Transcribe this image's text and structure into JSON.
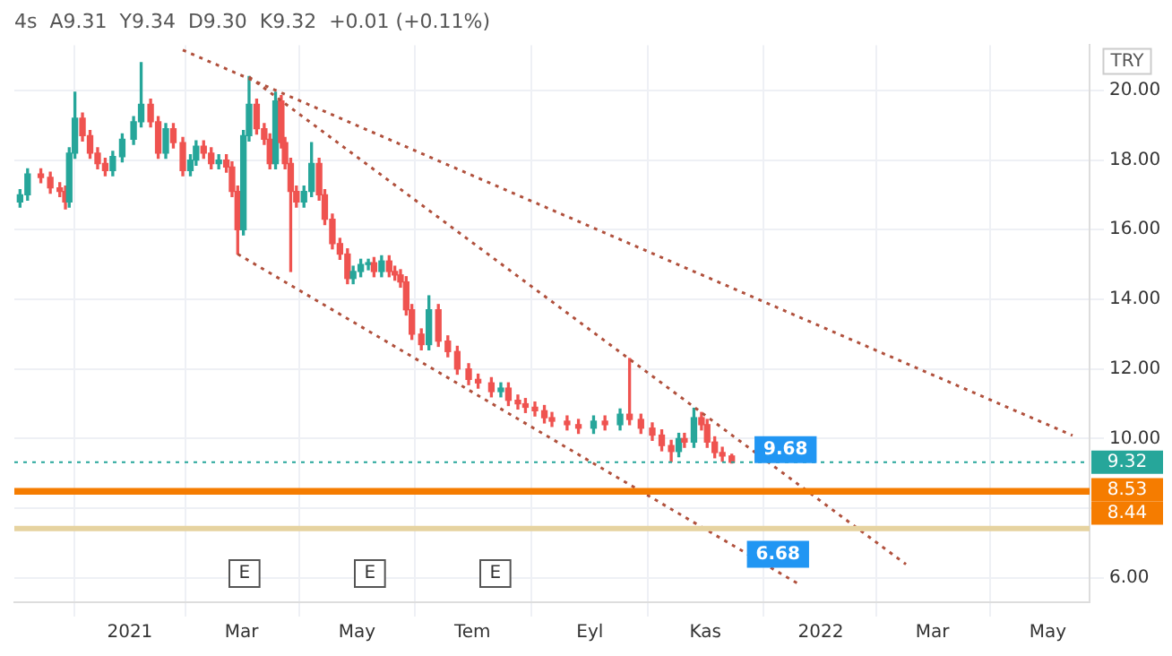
{
  "chart_data": {
    "type": "candlestick",
    "title": "4s  A9.31  Y9.34  D9.30  K9.32  +0.01 (+0.11%)",
    "ylabel": "TRY",
    "x": [
      "2020-11-04",
      "2020-11-08",
      "2020-11-15",
      "2020-11-20",
      "2020-11-25",
      "2020-11-28",
      "2020-11-30",
      "2020-12-03",
      "2020-12-07",
      "2020-12-11",
      "2020-12-15",
      "2020-12-19",
      "2020-12-23",
      "2020-12-28",
      "2021-01-03",
      "2021-01-07",
      "2021-01-12",
      "2021-01-16",
      "2021-01-20",
      "2021-01-24",
      "2021-01-29",
      "2021-02-02",
      "2021-02-05",
      "2021-02-09",
      "2021-02-13",
      "2021-02-17",
      "2021-02-21",
      "2021-02-24",
      "2021-02-27",
      "2021-03-02",
      "2021-03-05",
      "2021-03-09",
      "2021-03-13",
      "2021-03-16",
      "2021-03-19",
      "2021-03-22",
      "2021-03-24",
      "2021-03-27",
      "2021-03-30",
      "2021-04-03",
      "2021-04-07",
      "2021-04-11",
      "2021-04-14",
      "2021-04-18",
      "2021-04-22",
      "2021-04-26",
      "2021-04-29",
      "2021-05-03",
      "2021-05-07",
      "2021-05-10",
      "2021-05-14",
      "2021-05-18",
      "2021-05-21",
      "2021-05-24",
      "2021-05-27",
      "2021-05-30",
      "2021-06-04",
      "2021-06-08",
      "2021-06-13",
      "2021-06-18",
      "2021-06-23",
      "2021-06-29",
      "2021-07-04",
      "2021-07-11",
      "2021-07-16",
      "2021-07-20",
      "2021-07-25",
      "2021-07-29",
      "2021-08-03",
      "2021-08-08",
      "2021-08-12",
      "2021-08-20",
      "2021-08-26",
      "2021-09-03",
      "2021-09-09",
      "2021-09-17",
      "2021-09-22",
      "2021-09-28",
      "2021-10-04",
      "2021-10-09",
      "2021-10-14",
      "2021-10-18",
      "2021-10-21",
      "2021-10-26",
      "2021-10-30",
      "2021-11-02",
      "2021-11-06",
      "2021-11-10",
      "2021-11-15"
    ],
    "ohlc": [
      [
        16.8,
        17.15,
        16.65,
        17.0
      ],
      [
        17.0,
        17.75,
        16.85,
        17.6
      ],
      [
        17.6,
        17.75,
        17.35,
        17.5
      ],
      [
        17.5,
        17.65,
        17.05,
        17.2
      ],
      [
        17.2,
        17.35,
        16.95,
        17.1
      ],
      [
        17.1,
        17.25,
        16.6,
        16.8
      ],
      [
        16.8,
        18.35,
        16.65,
        18.2
      ],
      [
        18.2,
        19.95,
        18.05,
        19.2
      ],
      [
        19.2,
        19.35,
        18.55,
        18.7
      ],
      [
        18.7,
        18.85,
        18.05,
        18.2
      ],
      [
        18.2,
        18.35,
        17.75,
        17.9
      ],
      [
        17.9,
        18.05,
        17.55,
        17.7
      ],
      [
        17.7,
        18.25,
        17.55,
        18.1
      ],
      [
        18.1,
        18.75,
        17.95,
        18.6
      ],
      [
        18.6,
        19.25,
        18.45,
        19.1
      ],
      [
        19.1,
        20.8,
        18.95,
        19.6
      ],
      [
        19.6,
        19.75,
        18.95,
        19.1
      ],
      [
        19.1,
        19.25,
        18.05,
        18.2
      ],
      [
        18.2,
        19.05,
        18.05,
        18.9
      ],
      [
        18.9,
        19.05,
        18.35,
        18.5
      ],
      [
        18.5,
        18.65,
        17.55,
        17.7
      ],
      [
        17.7,
        18.15,
        17.55,
        18.0
      ],
      [
        18.0,
        18.55,
        17.85,
        18.4
      ],
      [
        18.4,
        18.55,
        18.05,
        18.2
      ],
      [
        18.2,
        18.35,
        17.75,
        17.9
      ],
      [
        17.9,
        18.15,
        17.75,
        18.0
      ],
      [
        18.0,
        18.15,
        17.65,
        17.8
      ],
      [
        17.8,
        17.95,
        16.95,
        17.1
      ],
      [
        17.1,
        17.25,
        15.3,
        16.0
      ],
      [
        16.0,
        18.85,
        15.85,
        18.7
      ],
      [
        18.7,
        20.4,
        18.55,
        19.6
      ],
      [
        19.6,
        19.75,
        18.75,
        18.9
      ],
      [
        18.9,
        19.05,
        18.45,
        18.6
      ],
      [
        18.6,
        18.75,
        17.75,
        17.9
      ],
      [
        17.9,
        19.95,
        17.75,
        19.7
      ],
      [
        19.7,
        19.85,
        18.35,
        18.5
      ],
      [
        18.5,
        18.65,
        17.75,
        17.9
      ],
      [
        17.9,
        18.05,
        14.8,
        17.1
      ],
      [
        17.1,
        17.25,
        16.65,
        16.8
      ],
      [
        16.8,
        17.25,
        16.65,
        17.1
      ],
      [
        17.1,
        18.5,
        16.95,
        17.9
      ],
      [
        17.9,
        18.05,
        16.85,
        17.0
      ],
      [
        17.0,
        17.15,
        16.15,
        16.3
      ],
      [
        16.3,
        16.45,
        15.45,
        15.6
      ],
      [
        15.6,
        15.75,
        15.15,
        15.3
      ],
      [
        15.3,
        15.45,
        14.45,
        14.6
      ],
      [
        14.6,
        14.95,
        14.45,
        14.8
      ],
      [
        14.8,
        15.15,
        14.65,
        15.0
      ],
      [
        15.0,
        15.15,
        14.85,
        15.05
      ],
      [
        15.05,
        15.2,
        14.65,
        14.8
      ],
      [
        14.8,
        15.25,
        14.65,
        15.1
      ],
      [
        15.1,
        15.25,
        14.65,
        14.8
      ],
      [
        14.8,
        14.95,
        14.55,
        14.7
      ],
      [
        14.7,
        14.85,
        14.35,
        14.5
      ],
      [
        14.5,
        14.65,
        13.55,
        13.7
      ],
      [
        13.7,
        13.85,
        12.85,
        13.0
      ],
      [
        13.0,
        13.15,
        12.55,
        12.7
      ],
      [
        12.7,
        14.1,
        12.55,
        13.7
      ],
      [
        13.7,
        13.85,
        12.65,
        12.8
      ],
      [
        12.8,
        12.95,
        12.35,
        12.5
      ],
      [
        12.5,
        12.65,
        11.85,
        12.0
      ],
      [
        12.0,
        12.15,
        11.55,
        11.7
      ],
      [
        11.7,
        11.85,
        11.45,
        11.6
      ],
      [
        11.6,
        11.75,
        11.2,
        11.35
      ],
      [
        11.35,
        11.6,
        11.2,
        11.45
      ],
      [
        11.45,
        11.6,
        10.95,
        11.1
      ],
      [
        11.1,
        11.25,
        10.85,
        11.0
      ],
      [
        11.0,
        11.15,
        10.75,
        10.9
      ],
      [
        10.9,
        11.05,
        10.65,
        10.8
      ],
      [
        10.8,
        10.95,
        10.45,
        10.6
      ],
      [
        10.6,
        10.75,
        10.35,
        10.5
      ],
      [
        10.5,
        10.65,
        10.25,
        10.4
      ],
      [
        10.4,
        10.55,
        10.15,
        10.3
      ],
      [
        10.3,
        10.65,
        10.15,
        10.5
      ],
      [
        10.5,
        10.65,
        10.25,
        10.4
      ],
      [
        10.4,
        10.85,
        10.25,
        10.7
      ],
      [
        10.7,
        12.3,
        10.4,
        10.55
      ],
      [
        10.55,
        10.7,
        10.15,
        10.3
      ],
      [
        10.3,
        10.45,
        9.95,
        10.1
      ],
      [
        10.1,
        10.25,
        9.65,
        9.8
      ],
      [
        9.8,
        9.95,
        9.34,
        9.63
      ],
      [
        9.63,
        10.15,
        9.48,
        10.0
      ],
      [
        10.0,
        10.15,
        9.75,
        9.9
      ],
      [
        9.9,
        10.87,
        9.75,
        10.6
      ],
      [
        10.6,
        10.75,
        10.25,
        10.4
      ],
      [
        10.4,
        10.55,
        9.75,
        9.9
      ],
      [
        9.9,
        10.05,
        9.45,
        9.6
      ],
      [
        9.6,
        9.75,
        9.35,
        9.5
      ],
      [
        9.5,
        9.55,
        9.3,
        9.32
      ]
    ],
    "colors": [
      "#26a69a",
      "#26a69a",
      "#ef5350",
      "#ef5350",
      "#ef5350",
      "#ef5350",
      "#26a69a",
      "#26a69a",
      "#ef5350",
      "#ef5350",
      "#ef5350",
      "#ef5350",
      "#26a69a",
      "#26a69a",
      "#26a69a",
      "#26a69a",
      "#ef5350",
      "#ef5350",
      "#26a69a",
      "#ef5350",
      "#ef5350",
      "#26a69a",
      "#26a69a",
      "#ef5350",
      "#ef5350",
      "#26a69a",
      "#ef5350",
      "#ef5350",
      "#ef5350",
      "#26a69a",
      "#26a69a",
      "#ef5350",
      "#ef5350",
      "#ef5350",
      "#26a69a",
      "#ef5350",
      "#ef5350",
      "#ef5350",
      "#ef5350",
      "#26a69a",
      "#26a69a",
      "#ef5350",
      "#ef5350",
      "#ef5350",
      "#ef5350",
      "#ef5350",
      "#26a69a",
      "#26a69a",
      "#26a69a",
      "#ef5350",
      "#26a69a",
      "#ef5350",
      "#ef5350",
      "#ef5350",
      "#ef5350",
      "#ef5350",
      "#ef5350",
      "#26a69a",
      "#ef5350",
      "#ef5350",
      "#ef5350",
      "#ef5350",
      "#ef5350",
      "#ef5350",
      "#26a69a",
      "#ef5350",
      "#ef5350",
      "#ef5350",
      "#ef5350",
      "#ef5350",
      "#ef5350",
      "#ef5350",
      "#ef5350",
      "#26a69a",
      "#ef5350",
      "#26a69a",
      "#ef5350",
      "#ef5350",
      "#ef5350",
      "#ef5350",
      "#ef5350",
      "#26a69a",
      "#ef5350",
      "#26a69a",
      "#ef5350",
      "#ef5350",
      "#ef5350",
      "#ef5350",
      "#ef5350"
    ],
    "series": [
      {
        "type": "line",
        "color": "#b0503c",
        "line_style": "dotted",
        "x": [
          "2021-01-29",
          "2022-05-14"
        ],
        "values": [
          21.16,
          10.09
        ]
      },
      {
        "type": "line",
        "color": "#b0503c",
        "line_style": "dotted",
        "x": [
          "2021-03-05",
          "2022-02-15"
        ],
        "values": [
          20.39,
          6.39
        ]
      },
      {
        "type": "line",
        "color": "#b0503c",
        "line_style": "dotted",
        "x": [
          "2021-02-27",
          "2021-12-21"
        ],
        "values": [
          15.3,
          5.8
        ]
      }
    ],
    "ref_lines": [
      {
        "axis": "y",
        "value": 9.32,
        "label": "9.32",
        "color": "#26a69a",
        "line_style": "dotted"
      },
      {
        "axis": "y",
        "value": 8.53,
        "label": "8.53",
        "color": "#f57c00"
      },
      {
        "axis": "y",
        "value": 8.44,
        "label": "8.44",
        "color": "#f57c00"
      },
      {
        "axis": "y",
        "value": 7.42,
        "color": "#e6d3a0"
      }
    ],
    "annotations": [
      {
        "text": "9.68",
        "x": "2021-11-27",
        "y": 9.68
      },
      {
        "text": "6.68",
        "x": "2021-11-23",
        "y": 6.68
      },
      "E",
      "E",
      "E"
    ],
    "xlim": [
      "2020-11-01",
      "2022-05-23"
    ],
    "xticks": [
      {
        "value": "2021-01-01",
        "label": "2021"
      },
      {
        "value": "2021-03-01",
        "label": "Mar"
      },
      {
        "value": "2021-05-01",
        "label": "May"
      },
      {
        "value": "2021-07-01",
        "label": "Tem"
      },
      {
        "value": "2021-09-01",
        "label": "Eyl"
      },
      {
        "value": "2021-11-01",
        "label": "Kas"
      },
      {
        "value": "2022-01-01",
        "label": "2022"
      },
      {
        "value": "2022-03-01",
        "label": "Mar"
      },
      {
        "value": "2022-05-01",
        "label": "May"
      }
    ],
    "ylim": [
      5.3,
      21.3
    ],
    "yticks": [
      {
        "value": 6,
        "label": "6.00"
      },
      {
        "value": 8,
        "label": null
      },
      {
        "value": 10,
        "label": "10.00"
      },
      {
        "value": 12,
        "label": "12.00"
      },
      {
        "value": 14,
        "label": "14.00"
      },
      {
        "value": 16,
        "label": "16.00"
      },
      {
        "value": 18,
        "label": "18.00"
      },
      {
        "value": 20,
        "label": "20.00"
      }
    ],
    "grid": true
  }
}
